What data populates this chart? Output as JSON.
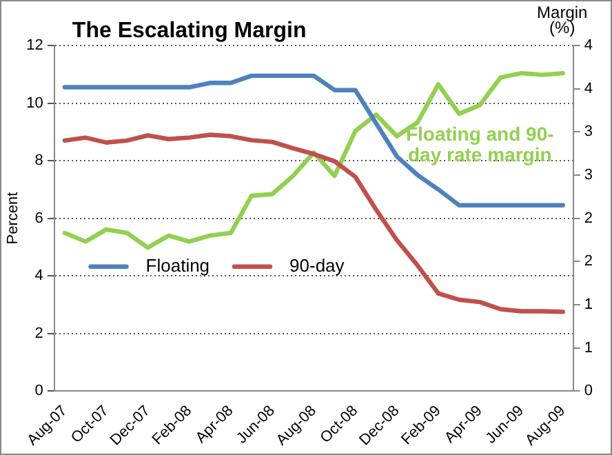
{
  "chart_data": {
    "type": "line",
    "title": "The Escalating Margin",
    "ylabel": "Percent",
    "y2label": "Margin (%)",
    "categories": [
      "Aug-07",
      null,
      "Oct-07",
      null,
      "Dec-07",
      null,
      "Feb-08",
      null,
      "Apr-08",
      null,
      "Jun-08",
      null,
      "Aug-08",
      null,
      "Oct-08",
      null,
      "Dec-08",
      null,
      "Feb-09",
      null,
      "Apr-09",
      null,
      "Jun-09",
      null,
      "Aug-09"
    ],
    "series": [
      {
        "name": "Floating",
        "color": "#4f81bd",
        "values": [
          10.55,
          10.55,
          10.55,
          10.55,
          10.55,
          10.55,
          10.55,
          10.7,
          10.7,
          10.95,
          10.95,
          10.95,
          10.95,
          10.45,
          10.45,
          9.3,
          8.15,
          7.5,
          7.0,
          6.45,
          6.45,
          6.45,
          6.45,
          6.45,
          6.45
        ]
      },
      {
        "name": "90-day",
        "color": "#c0504d",
        "values": [
          8.7,
          8.8,
          8.63,
          8.7,
          8.88,
          8.75,
          8.8,
          8.9,
          8.85,
          8.71,
          8.65,
          8.43,
          8.23,
          7.98,
          7.44,
          6.3,
          5.24,
          4.36,
          3.39,
          3.17,
          3.09,
          2.84,
          2.77,
          2.77,
          2.75
        ]
      },
      {
        "name": "Floating and 90-day rate margin",
        "color": "#92d050",
        "axis": "y2",
        "values": [
          1.83,
          1.73,
          1.87,
          1.83,
          1.66,
          1.8,
          1.73,
          1.8,
          1.83,
          2.26,
          2.28,
          2.49,
          2.76,
          2.49,
          3.01,
          3.2,
          2.95,
          3.11,
          3.55,
          3.21,
          3.31,
          3.63,
          3.68,
          3.66,
          3.68
        ]
      }
    ],
    "ylim": [
      0,
      12
    ],
    "yticks": [
      0,
      2,
      4,
      6,
      8,
      10,
      12
    ],
    "y2lim": [
      0,
      4
    ],
    "y2ticks": [
      0,
      {
        "value": 0.5,
        "label": "1"
      },
      1,
      {
        "value": 1.5,
        "label": "2"
      },
      2,
      {
        "value": 2.5,
        "label": "3"
      },
      3,
      {
        "value": 3.5,
        "label": "4"
      },
      4
    ],
    "grid": "y",
    "legend": "left",
    "marker": "none",
    "line_style": "solid"
  }
}
